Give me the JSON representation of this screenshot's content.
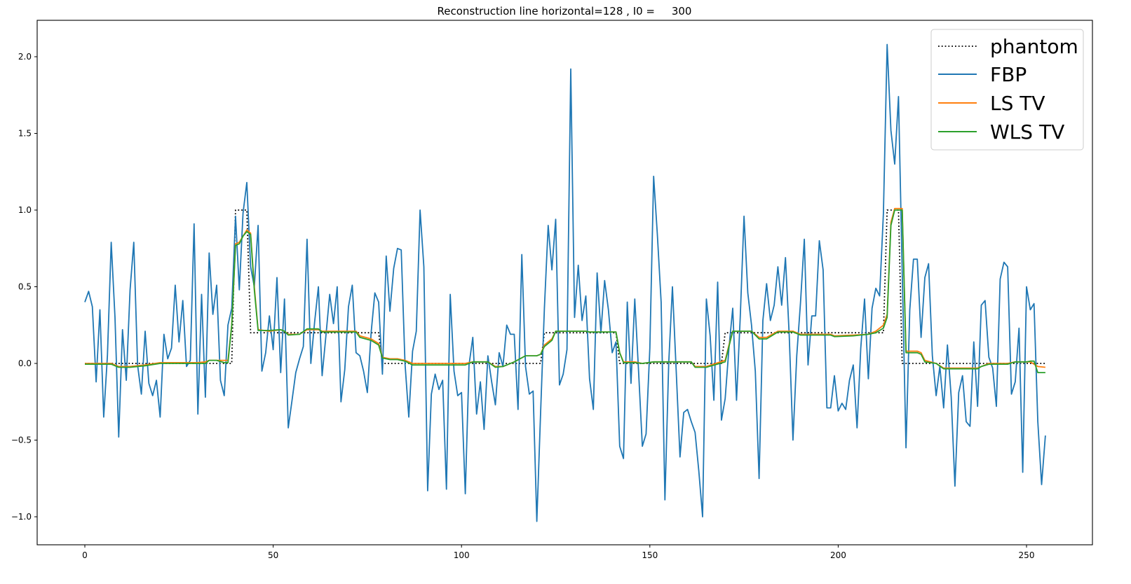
{
  "chart_data": {
    "type": "line",
    "title": "Reconstruction line horizontal=128 , I0 =     300",
    "xlabel": "",
    "ylabel": "",
    "xlim": [
      -12.5,
      267.5
    ],
    "ylim": [
      -1.18,
      2.23
    ],
    "grid": false,
    "legend_position": "upper right",
    "x_ticks": [
      0,
      50,
      100,
      150,
      200,
      250
    ],
    "x_tick_labels": [
      "0",
      "50",
      "100",
      "150",
      "200",
      "250"
    ],
    "y_ticks": [
      -1.0,
      -0.5,
      0.0,
      0.5,
      1.0,
      1.5,
      2.0
    ],
    "y_tick_labels": [
      "−1.0",
      "−0.5",
      "0.0",
      "0.5",
      "1.0",
      "1.5",
      "2.0"
    ],
    "x": "0..255 (index)",
    "series": [
      {
        "name": "phantom",
        "color": "#000000",
        "style": "dotted",
        "segments": [
          {
            "x_start": 0,
            "x_end": 39,
            "value": 0.0
          },
          {
            "x_start": 40,
            "x_end": 43,
            "value": 1.0
          },
          {
            "x_start": 44,
            "x_end": 78,
            "value": 0.2
          },
          {
            "x_start": 79,
            "x_end": 121,
            "value": 0.0
          },
          {
            "x_start": 122,
            "x_end": 141,
            "value": 0.2
          },
          {
            "x_start": 142,
            "x_end": 169,
            "value": 0.0
          },
          {
            "x_start": 170,
            "x_end": 212,
            "value": 0.2
          },
          {
            "x_start": 213,
            "x_end": 216,
            "value": 1.0
          },
          {
            "x_start": 217,
            "x_end": 255,
            "value": 0.0
          }
        ]
      },
      {
        "name": "FBP",
        "color": "#1f77b4",
        "style": "solid",
        "values": [
          0.4,
          0.47,
          0.37,
          -0.12,
          0.35,
          -0.35,
          0.05,
          0.79,
          0.3,
          -0.48,
          0.22,
          -0.11,
          0.48,
          0.79,
          -0.01,
          -0.2,
          0.21,
          -0.13,
          -0.21,
          -0.11,
          -0.35,
          0.19,
          0.03,
          0.1,
          0.51,
          0.14,
          0.41,
          -0.02,
          0.02,
          0.91,
          -0.33,
          0.45,
          -0.22,
          0.72,
          0.32,
          0.51,
          -0.11,
          -0.21,
          0.25,
          0.36,
          0.96,
          0.48,
          0.98,
          1.18,
          0.63,
          0.5,
          0.9,
          -0.05,
          0.07,
          0.31,
          0.09,
          0.56,
          -0.06,
          0.42,
          -0.42,
          -0.24,
          -0.06,
          0.03,
          0.11,
          0.81,
          0.0,
          0.27,
          0.5,
          -0.08,
          0.18,
          0.45,
          0.26,
          0.5,
          -0.25,
          -0.04,
          0.37,
          0.51,
          0.07,
          0.05,
          -0.05,
          -0.19,
          0.2,
          0.46,
          0.4,
          -0.07,
          0.7,
          0.34,
          0.62,
          0.75,
          0.74,
          0.0,
          -0.35,
          0.08,
          0.21,
          1.0,
          0.63,
          -0.83,
          -0.2,
          -0.07,
          -0.17,
          -0.11,
          -0.82,
          0.45,
          -0.05,
          -0.21,
          -0.19,
          -0.85,
          -0.01,
          0.17,
          -0.33,
          -0.12,
          -0.43,
          0.05,
          -0.12,
          -0.27,
          0.07,
          -0.02,
          0.25,
          0.19,
          0.19,
          -0.3,
          0.71,
          -0.02,
          -0.2,
          -0.18,
          -1.03,
          -0.32,
          0.36,
          0.9,
          0.61,
          0.94,
          -0.14,
          -0.07,
          0.09,
          1.92,
          0.3,
          0.64,
          0.28,
          0.44,
          -0.1,
          -0.3,
          0.59,
          0.2,
          0.54,
          0.35,
          0.07,
          0.14,
          -0.54,
          -0.62,
          0.4,
          -0.13,
          0.42,
          -0.05,
          -0.54,
          -0.46,
          0.1,
          1.22,
          0.84,
          0.4,
          -0.89,
          0.0,
          0.5,
          -0.05,
          -0.61,
          -0.32,
          -0.3,
          -0.38,
          -0.45,
          -0.7,
          -1.0,
          0.42,
          0.18,
          -0.24,
          0.53,
          -0.37,
          -0.23,
          0.1,
          0.36,
          -0.24,
          0.3,
          0.96,
          0.46,
          0.25,
          -0.05,
          -0.75,
          0.28,
          0.52,
          0.28,
          0.38,
          0.63,
          0.38,
          0.69,
          0.18,
          -0.5,
          0.05,
          0.4,
          0.81,
          -0.01,
          0.31,
          0.31,
          0.8,
          0.61,
          -0.29,
          -0.29,
          -0.08,
          -0.31,
          -0.26,
          -0.3,
          -0.11,
          -0.01,
          -0.42,
          0.1,
          0.42,
          -0.1,
          0.36,
          0.49,
          0.44,
          0.98,
          2.08,
          1.52,
          1.3,
          1.74,
          0.6,
          -0.55,
          0.35,
          0.68,
          0.68,
          0.17,
          0.56,
          0.65,
          0.05,
          -0.21,
          -0.02,
          -0.29,
          0.12,
          -0.22,
          -0.8,
          -0.19,
          -0.08,
          -0.38,
          -0.41,
          0.14,
          -0.28,
          0.38,
          0.41,
          0.04,
          -0.03,
          -0.28,
          0.55,
          0.66,
          0.63,
          -0.2,
          -0.12,
          0.23,
          -0.71,
          0.5,
          0.35,
          0.39,
          -0.38,
          -0.79,
          -0.47
        ]
      },
      {
        "name": "LS TV",
        "color": "#ff7f0e",
        "style": "solid",
        "points": [
          [
            0,
            0.0
          ],
          [
            7,
            0.0
          ],
          [
            9,
            -0.02
          ],
          [
            12,
            -0.02
          ],
          [
            16,
            -0.01
          ],
          [
            20,
            0.005
          ],
          [
            30,
            0.005
          ],
          [
            32,
            0.01
          ],
          [
            33,
            0.02
          ],
          [
            38,
            0.02
          ],
          [
            39,
            0.25
          ],
          [
            40,
            0.78
          ],
          [
            41,
            0.79
          ],
          [
            42,
            0.83
          ],
          [
            43,
            0.87
          ],
          [
            44,
            0.85
          ],
          [
            45,
            0.5
          ],
          [
            46,
            0.22
          ],
          [
            49,
            0.21
          ],
          [
            52,
            0.22
          ],
          [
            53,
            0.21
          ],
          [
            54,
            0.19
          ],
          [
            57,
            0.19
          ],
          [
            59,
            0.22
          ],
          [
            62,
            0.22
          ],
          [
            63,
            0.21
          ],
          [
            72,
            0.21
          ],
          [
            73,
            0.18
          ],
          [
            76,
            0.16
          ],
          [
            78,
            0.13
          ],
          [
            79,
            0.04
          ],
          [
            81,
            0.03
          ],
          [
            83,
            0.03
          ],
          [
            85,
            0.02
          ],
          [
            87,
            0.0
          ],
          [
            101,
            0.0
          ],
          [
            103,
            0.01
          ],
          [
            107,
            0.01
          ],
          [
            109,
            -0.02
          ],
          [
            111,
            -0.02
          ],
          [
            114,
            0.01
          ],
          [
            117,
            0.05
          ],
          [
            120,
            0.05
          ],
          [
            121,
            0.06
          ],
          [
            122,
            0.12
          ],
          [
            124,
            0.16
          ],
          [
            125,
            0.21
          ],
          [
            133,
            0.21
          ],
          [
            134,
            0.205
          ],
          [
            141,
            0.205
          ],
          [
            142,
            0.07
          ],
          [
            143,
            0.01
          ],
          [
            146,
            0.01
          ],
          [
            148,
            0.0
          ],
          [
            151,
            0.01
          ],
          [
            161,
            0.01
          ],
          [
            162,
            -0.02
          ],
          [
            165,
            -0.02
          ],
          [
            170,
            0.02
          ],
          [
            171,
            0.12
          ],
          [
            172,
            0.21
          ],
          [
            177,
            0.21
          ],
          [
            179,
            0.17
          ],
          [
            181,
            0.17
          ],
          [
            184,
            0.21
          ],
          [
            188,
            0.21
          ],
          [
            190,
            0.19
          ],
          [
            198,
            0.19
          ],
          [
            199,
            0.18
          ],
          [
            204,
            0.185
          ],
          [
            208,
            0.19
          ],
          [
            210,
            0.21
          ],
          [
            212,
            0.25
          ],
          [
            213,
            0.32
          ],
          [
            214,
            0.92
          ],
          [
            215,
            1.01
          ],
          [
            217,
            1.01
          ],
          [
            218,
            0.08
          ],
          [
            221,
            0.08
          ],
          [
            222,
            0.07
          ],
          [
            223,
            0.02
          ],
          [
            226,
            0.0
          ],
          [
            228,
            -0.03
          ],
          [
            237,
            -0.03
          ],
          [
            238,
            -0.02
          ],
          [
            240,
            0.0
          ],
          [
            245,
            0.0
          ],
          [
            247,
            0.01
          ],
          [
            250,
            0.01
          ],
          [
            251,
            0.01
          ],
          [
            253,
            -0.02
          ],
          [
            255,
            -0.025
          ]
        ]
      },
      {
        "name": "WLS TV",
        "color": "#2ca02c",
        "style": "solid",
        "points": [
          [
            0,
            -0.005
          ],
          [
            7,
            -0.005
          ],
          [
            9,
            -0.025
          ],
          [
            12,
            -0.025
          ],
          [
            16,
            -0.015
          ],
          [
            20,
            0.0
          ],
          [
            30,
            0.0
          ],
          [
            32,
            0.0
          ],
          [
            33,
            0.02
          ],
          [
            35,
            0.02
          ],
          [
            37,
            0.005
          ],
          [
            38,
            0.005
          ],
          [
            39,
            0.25
          ],
          [
            40,
            0.77
          ],
          [
            41,
            0.78
          ],
          [
            42,
            0.83
          ],
          [
            43,
            0.86
          ],
          [
            44,
            0.84
          ],
          [
            45,
            0.48
          ],
          [
            46,
            0.215
          ],
          [
            49,
            0.215
          ],
          [
            52,
            0.22
          ],
          [
            53,
            0.21
          ],
          [
            54,
            0.185
          ],
          [
            57,
            0.19
          ],
          [
            59,
            0.225
          ],
          [
            62,
            0.225
          ],
          [
            63,
            0.205
          ],
          [
            72,
            0.205
          ],
          [
            73,
            0.17
          ],
          [
            76,
            0.15
          ],
          [
            78,
            0.12
          ],
          [
            79,
            0.035
          ],
          [
            81,
            0.025
          ],
          [
            83,
            0.025
          ],
          [
            85,
            0.015
          ],
          [
            87,
            -0.01
          ],
          [
            101,
            -0.01
          ],
          [
            103,
            0.01
          ],
          [
            107,
            0.01
          ],
          [
            109,
            -0.025
          ],
          [
            111,
            -0.02
          ],
          [
            114,
            0.01
          ],
          [
            117,
            0.05
          ],
          [
            120,
            0.05
          ],
          [
            121,
            0.06
          ],
          [
            122,
            0.11
          ],
          [
            124,
            0.15
          ],
          [
            125,
            0.21
          ],
          [
            133,
            0.21
          ],
          [
            134,
            0.205
          ],
          [
            141,
            0.205
          ],
          [
            142,
            0.07
          ],
          [
            143,
            0.005
          ],
          [
            146,
            0.005
          ],
          [
            148,
            0.0
          ],
          [
            151,
            0.01
          ],
          [
            161,
            0.01
          ],
          [
            162,
            -0.025
          ],
          [
            165,
            -0.025
          ],
          [
            170,
            0.01
          ],
          [
            171,
            0.11
          ],
          [
            172,
            0.21
          ],
          [
            177,
            0.21
          ],
          [
            179,
            0.16
          ],
          [
            181,
            0.16
          ],
          [
            184,
            0.205
          ],
          [
            188,
            0.205
          ],
          [
            190,
            0.185
          ],
          [
            198,
            0.185
          ],
          [
            199,
            0.175
          ],
          [
            204,
            0.18
          ],
          [
            208,
            0.19
          ],
          [
            210,
            0.2
          ],
          [
            212,
            0.23
          ],
          [
            213,
            0.3
          ],
          [
            214,
            0.9
          ],
          [
            215,
            1.0
          ],
          [
            217,
            1.0
          ],
          [
            218,
            0.07
          ],
          [
            221,
            0.07
          ],
          [
            222,
            0.06
          ],
          [
            223,
            0.01
          ],
          [
            226,
            0.0
          ],
          [
            228,
            -0.035
          ],
          [
            237,
            -0.035
          ],
          [
            238,
            -0.02
          ],
          [
            240,
            -0.005
          ],
          [
            245,
            -0.005
          ],
          [
            247,
            0.01
          ],
          [
            250,
            0.01
          ],
          [
            251,
            0.015
          ],
          [
            252,
            0.015
          ],
          [
            253,
            -0.06
          ],
          [
            255,
            -0.06
          ]
        ]
      }
    ]
  },
  "legend": {
    "items": [
      {
        "label": "phantom",
        "color": "#000000",
        "style": "dotted"
      },
      {
        "label": "FBP",
        "color": "#1f77b4",
        "style": "solid"
      },
      {
        "label": "LS TV",
        "color": "#ff7f0e",
        "style": "solid"
      },
      {
        "label": "WLS TV",
        "color": "#2ca02c",
        "style": "solid"
      }
    ]
  }
}
